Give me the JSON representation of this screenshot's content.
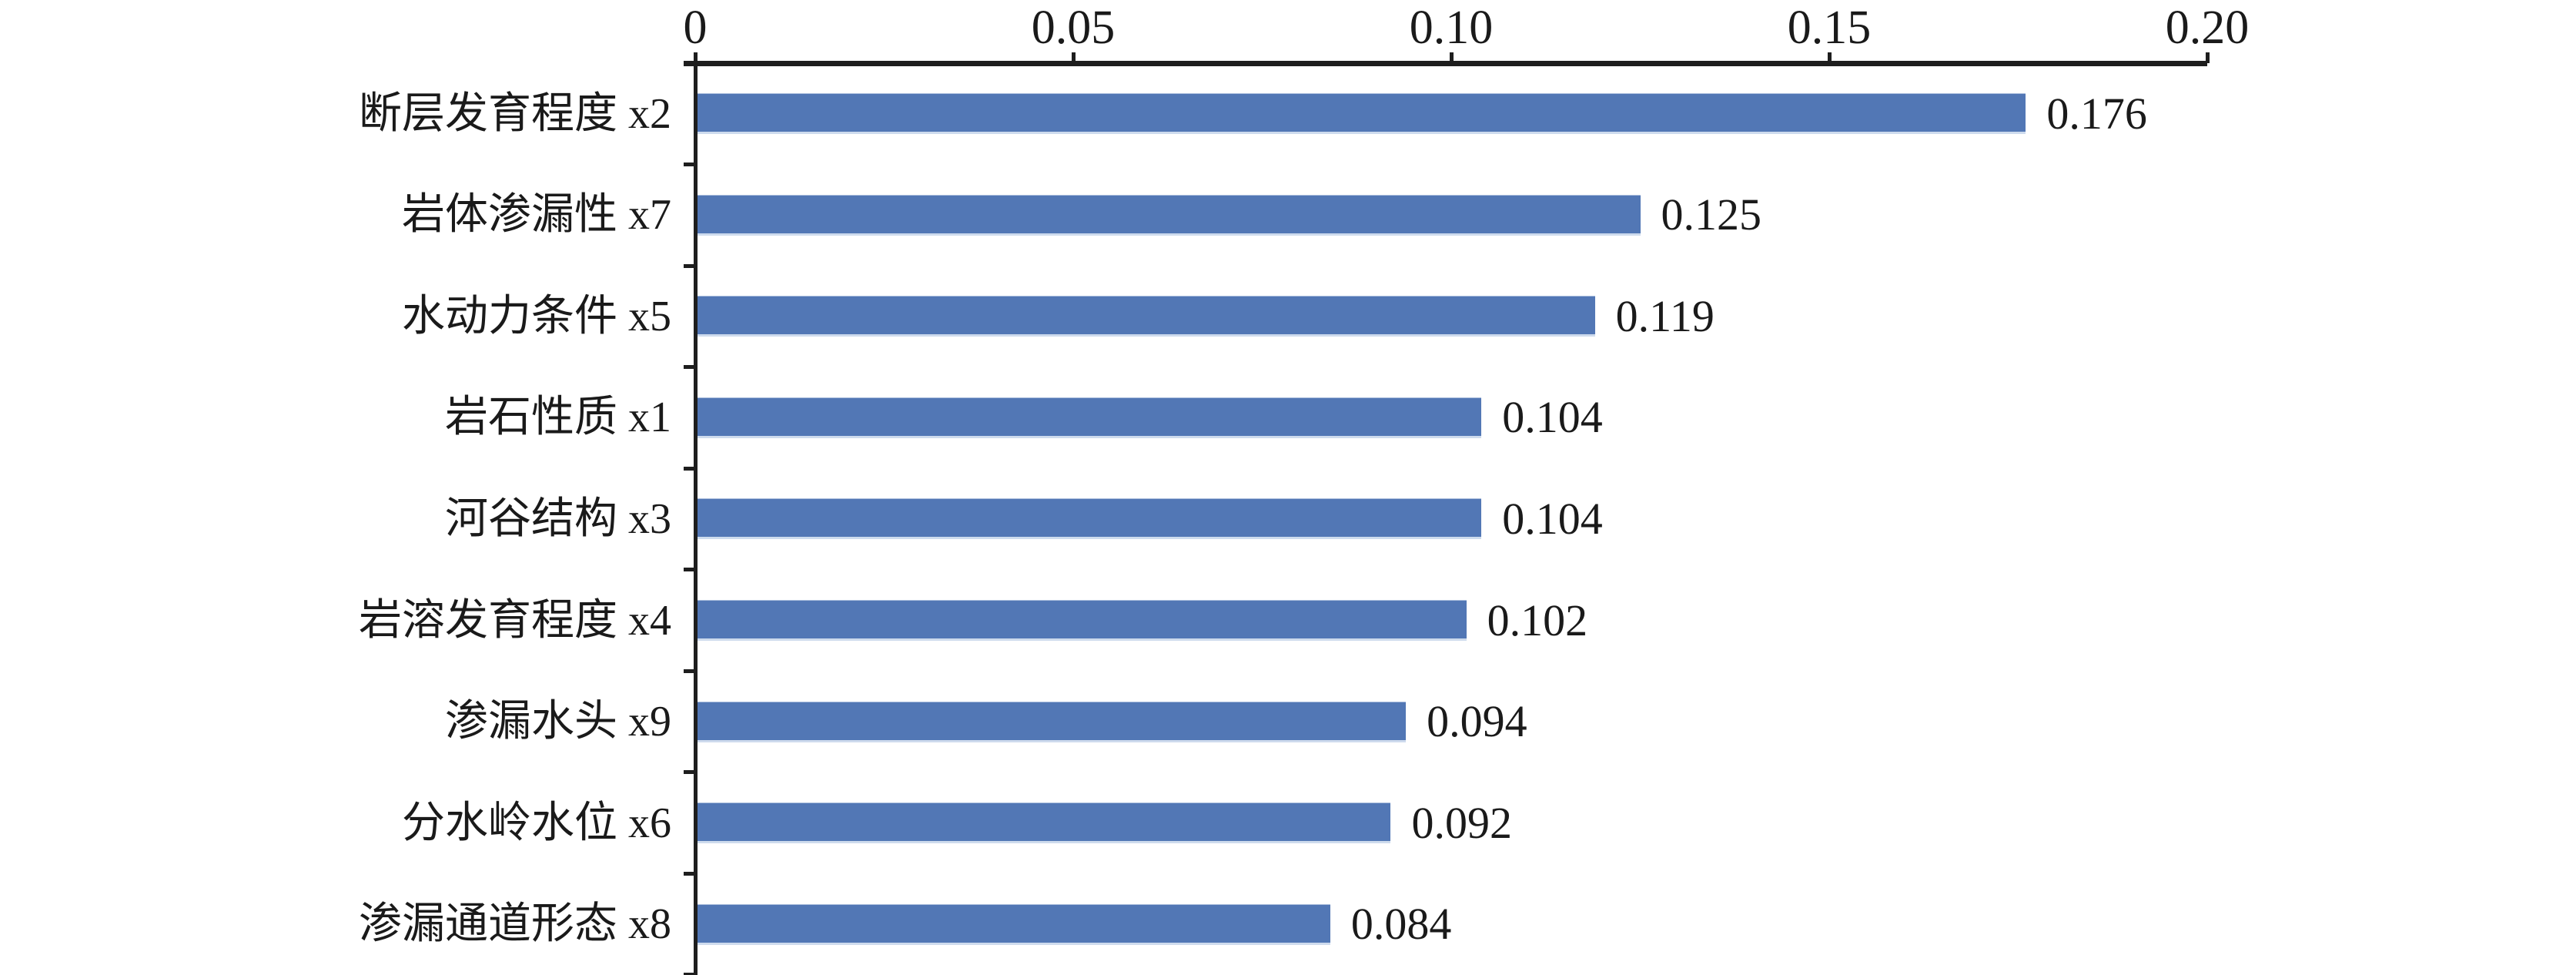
{
  "chart_data": {
    "type": "bar",
    "orientation": "horizontal",
    "title": "",
    "xlabel": "",
    "ylabel": "",
    "grid": false,
    "legend": false,
    "background": "#ffffff",
    "bar_color": "#5277b5",
    "axis_color": "#1e1e1e",
    "text_color": "#1a1a1a",
    "categories": [
      "断层发育程度 x2",
      "岩体渗漏性 x7",
      "水动力条件 x5",
      "岩石性质 x1",
      "河谷结构 x3",
      "岩溶发育程度 x4",
      "渗漏水头 x9",
      "分水岭水位 x6",
      "渗漏通道形态 x8"
    ],
    "values": [
      0.176,
      0.125,
      0.119,
      0.104,
      0.104,
      0.102,
      0.094,
      0.092,
      0.084
    ],
    "value_labels": [
      "0.176",
      "0.125",
      "0.119",
      "0.104",
      "0.104",
      "0.102",
      "0.094",
      "0.092",
      "0.084"
    ],
    "x_axis": {
      "position": "top",
      "min": 0,
      "max": 0.2,
      "ticks": [
        0,
        0.05,
        0.1,
        0.15,
        0.2
      ],
      "tick_labels": [
        "0",
        "0.05",
        "0.10",
        "0.15",
        "0.20"
      ]
    }
  }
}
